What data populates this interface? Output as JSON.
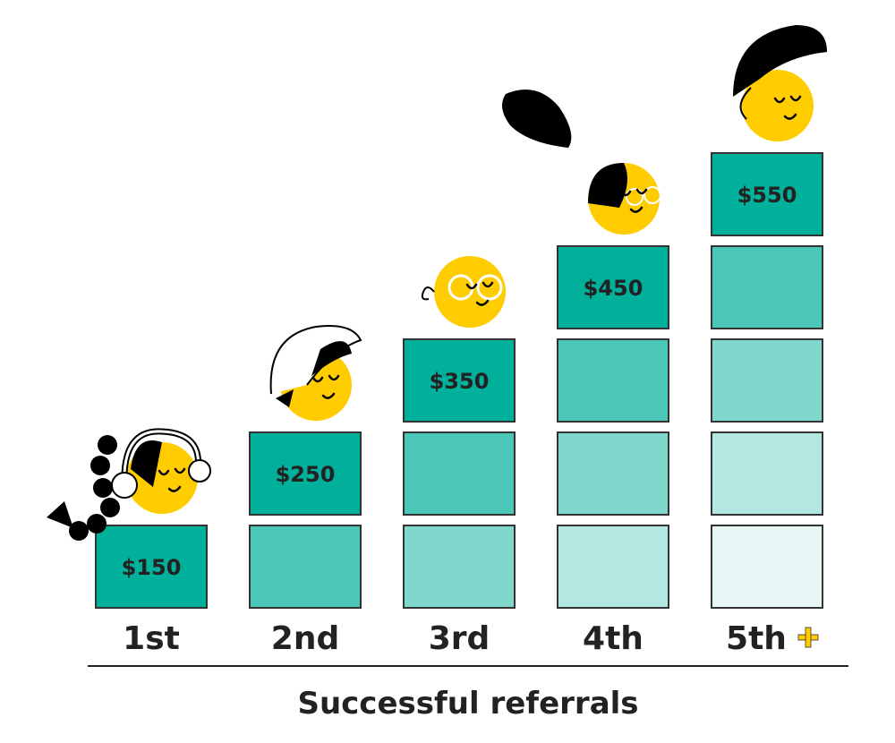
{
  "chart_data": {
    "type": "bar",
    "style": "stacked-steps",
    "categories": [
      "1st",
      "2nd",
      "3rd",
      "4th",
      "5th"
    ],
    "category_suffix": {
      "index": 4,
      "symbol": "+",
      "color": "#ffcc00"
    },
    "values": [
      150,
      250,
      350,
      450,
      550
    ],
    "value_labels": [
      "$150",
      "$250",
      "$350",
      "$450",
      "$550"
    ],
    "block_counts": [
      1,
      2,
      3,
      4,
      5
    ],
    "xlabel": "Successful referrals",
    "ylabel": "",
    "title": "",
    "grid": false,
    "colors": {
      "top_block": "#00b09b",
      "shades": [
        "#00b09b",
        "#4cc8b9",
        "#80d8cd",
        "#b3e7e1",
        "#e5f6f4"
      ],
      "face": "#ffcc00",
      "outline": "#333333"
    },
    "decorations": [
      "face-headphones-braid",
      "face-cap",
      "face-glasses",
      "face-hair-bun",
      "face-big-hair"
    ]
  }
}
